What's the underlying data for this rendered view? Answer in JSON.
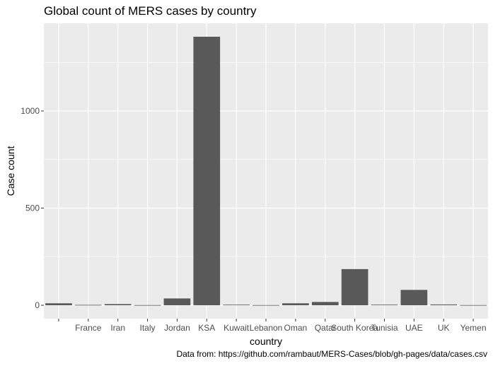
{
  "chart_data": {
    "type": "bar",
    "title": "Global count of MERS cases by country",
    "xlabel": "country",
    "ylabel": "Case count",
    "caption": "Data from: https://github.com/rambaut/MERS-Cases/blob/gh-pages/data/cases.csv",
    "categories": [
      "",
      "France",
      "Iran",
      "Italy",
      "Jordan",
      "KSA",
      "Kuwait",
      "Lebanon",
      "Oman",
      "Qatar",
      "South Korea",
      "Tunisia",
      "UAE",
      "UK",
      "Yemen"
    ],
    "values": [
      10,
      2,
      6,
      1,
      35,
      1382,
      3,
      1,
      10,
      17,
      186,
      3,
      79,
      4,
      1
    ],
    "yticks": [
      0,
      500,
      1000
    ],
    "ylim": [
      -69,
      1451
    ],
    "grid": true,
    "colors": {
      "panel": "#ebebeb",
      "gridline": "#ffffff",
      "bar": "#595959",
      "tick_text": "#4d4d4d"
    }
  }
}
